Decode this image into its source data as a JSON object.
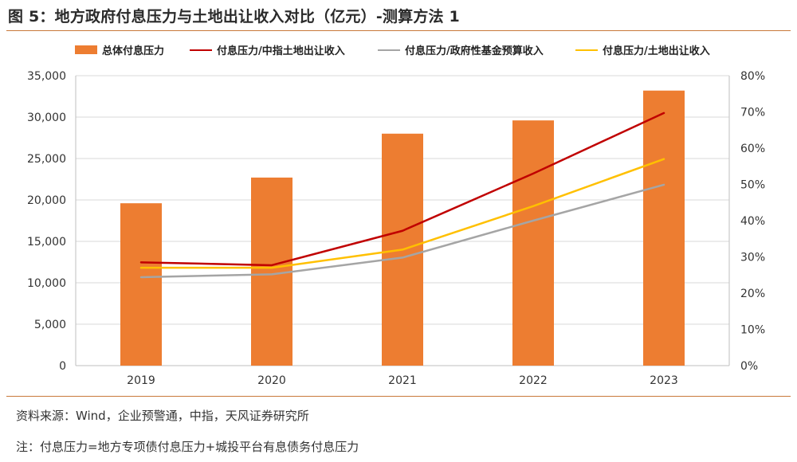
{
  "figure": {
    "title": "图 5：地方政府付息压力与土地出让收入对比（亿元）-测算方法 1",
    "source": "资料来源：Wind，企业预警通，中指，天风证券研究所",
    "note": "注：付息压力=地方专项债付息压力+城投平台有息债务付息压力"
  },
  "colors": {
    "bar": "#ED7D31",
    "series_red": "#C00000",
    "series_gray": "#A5A5A5",
    "series_yellow": "#FFC000",
    "rule": "#C8793A"
  },
  "chart_data": {
    "type": "bar",
    "categories": [
      "2019",
      "2020",
      "2021",
      "2022",
      "2023"
    ],
    "left_axis": {
      "ylim": [
        0,
        35000
      ],
      "ticks": [
        "0",
        "5,000",
        "10,000",
        "15,000",
        "20,000",
        "25,000",
        "30,000",
        "35,000"
      ]
    },
    "right_axis": {
      "ylim": [
        0,
        0.8
      ],
      "ticks": [
        "0%",
        "10%",
        "20%",
        "30%",
        "40%",
        "50%",
        "60%",
        "70%",
        "80%"
      ]
    },
    "legend_position": "top",
    "grid": true,
    "series": [
      {
        "name": "总体付息压力",
        "type": "bar",
        "axis": "left",
        "values": [
          19600,
          22700,
          28000,
          29600,
          33200
        ]
      },
      {
        "name": "付息压力/中指土地出让收入",
        "type": "line",
        "axis": "right",
        "values": [
          0.285,
          0.277,
          0.372,
          0.53,
          0.697
        ]
      },
      {
        "name": "付息压力/政府性基金预算收入",
        "type": "line",
        "axis": "right",
        "values": [
          0.244,
          0.252,
          0.298,
          0.4,
          0.499
        ]
      },
      {
        "name": "付息压力/土地出让收入",
        "type": "line",
        "axis": "right",
        "values": [
          0.27,
          0.27,
          0.32,
          0.44,
          0.57
        ]
      }
    ]
  }
}
